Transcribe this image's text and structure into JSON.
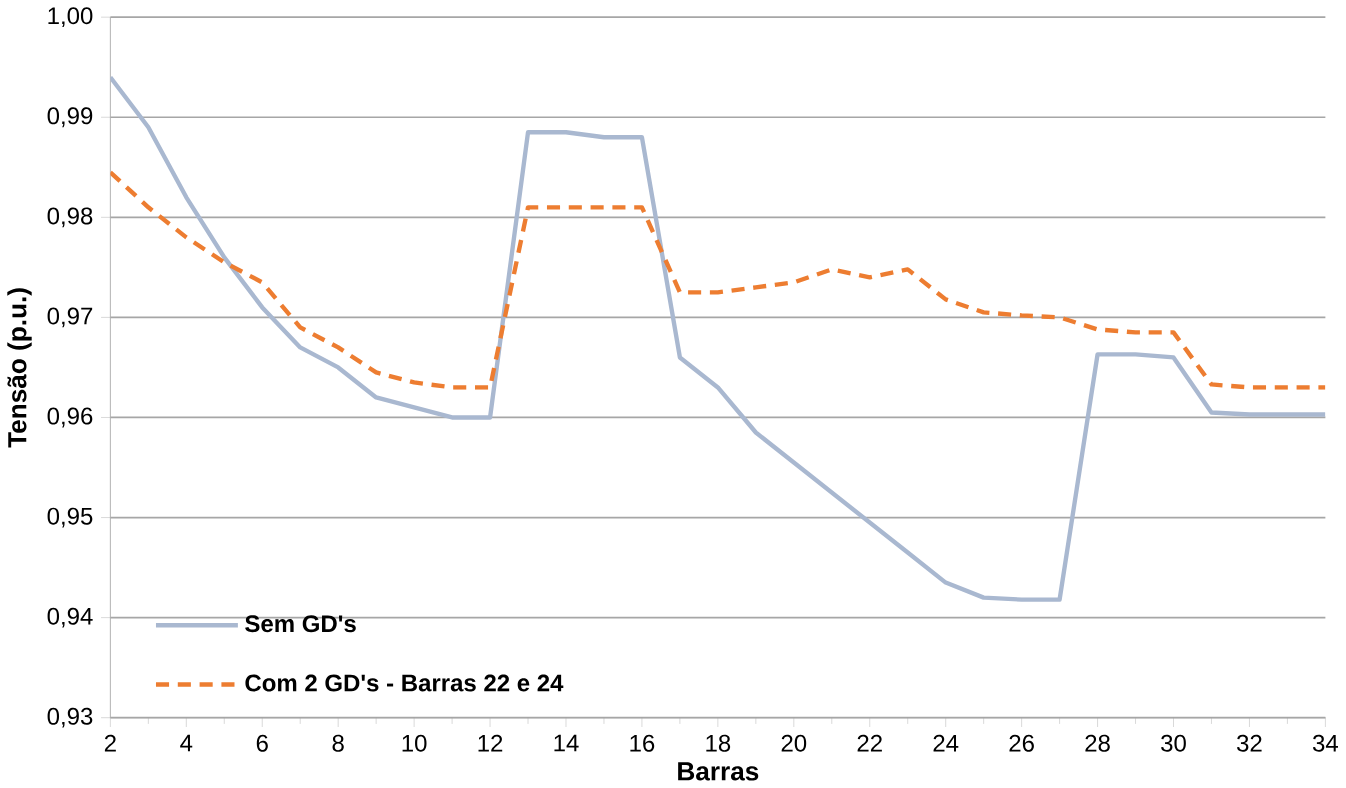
{
  "chart_data": {
    "type": "line",
    "xlabel": "Barras",
    "ylabel": "Tensão (p.u.)",
    "x": [
      2,
      3,
      4,
      5,
      6,
      7,
      8,
      9,
      10,
      11,
      12,
      13,
      14,
      15,
      16,
      17,
      18,
      19,
      20,
      21,
      22,
      23,
      24,
      25,
      26,
      27,
      28,
      29,
      30,
      31,
      32,
      33,
      34
    ],
    "series": [
      {
        "name": "Sem GD's",
        "color": "#a9b8d0",
        "line_style": "solid",
        "values": [
          0.994,
          0.989,
          0.982,
          0.976,
          0.971,
          0.967,
          0.965,
          0.962,
          0.961,
          0.96,
          0.96,
          0.9885,
          0.9885,
          0.988,
          0.988,
          0.966,
          0.963,
          0.9585,
          0.9555,
          0.9525,
          0.9495,
          0.9465,
          0.9435,
          0.942,
          0.9418,
          0.9418,
          0.9663,
          0.9663,
          0.966,
          0.9605,
          0.9603,
          0.9603,
          0.9603
        ]
      },
      {
        "name": "Com 2 GD's - Barras 22 e 24",
        "color": "#ed7d31",
        "line_style": "dashed",
        "values": [
          0.9845,
          0.981,
          0.978,
          0.9755,
          0.9735,
          0.969,
          0.967,
          0.9645,
          0.9635,
          0.963,
          0.963,
          0.981,
          0.981,
          0.981,
          0.981,
          0.9725,
          0.9725,
          0.973,
          0.9735,
          0.9748,
          0.974,
          0.9748,
          0.9718,
          0.9705,
          0.9702,
          0.97,
          0.9688,
          0.9685,
          0.9685,
          0.9633,
          0.963,
          0.963,
          0.963
        ]
      }
    ],
    "xlim": [
      2,
      34
    ],
    "xticks": [
      2,
      4,
      6,
      8,
      10,
      12,
      14,
      16,
      18,
      20,
      22,
      24,
      26,
      28,
      30,
      32,
      34
    ],
    "ylim": [
      0.93,
      1.0
    ],
    "yticks": [
      {
        "value": 0.93,
        "label": "0,93"
      },
      {
        "value": 0.94,
        "label": "0,94"
      },
      {
        "value": 0.95,
        "label": "0,95"
      },
      {
        "value": 0.96,
        "label": "0,96"
      },
      {
        "value": 0.97,
        "label": "0,97"
      },
      {
        "value": 0.98,
        "label": "0,98"
      },
      {
        "value": 0.99,
        "label": "0,99"
      },
      {
        "value": 1.0,
        "label": "1,00"
      }
    ],
    "grid": "y",
    "legend": "bottom left",
    "marker": "none"
  }
}
